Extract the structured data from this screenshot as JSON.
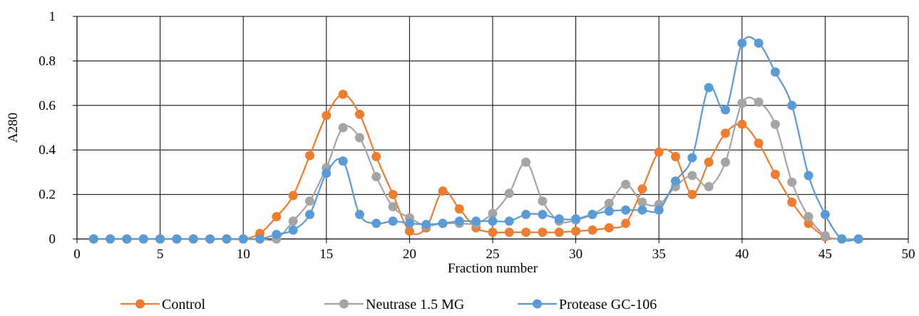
{
  "chart_data": {
    "type": "line",
    "title": "",
    "xlabel": "Fraction number",
    "ylabel": "A280",
    "xlim": [
      0,
      50
    ],
    "ylim": [
      0,
      1
    ],
    "xticks": [
      0,
      5,
      10,
      15,
      20,
      25,
      30,
      35,
      40,
      45,
      50
    ],
    "yticks": [
      0,
      0.2,
      0.4,
      0.6,
      0.8,
      1
    ],
    "xtick_labels": [
      "0",
      "5",
      "10",
      "15",
      "20",
      "25",
      "30",
      "35",
      "40",
      "45",
      "50"
    ],
    "ytick_labels": [
      "0",
      "0.2",
      "0.4",
      "0.6",
      "0.8",
      "1"
    ],
    "grid": true,
    "smooth": true,
    "legend_position": "bottom",
    "series": [
      {
        "name": "Control",
        "color": "#ED7D31",
        "x": [
          1,
          2,
          3,
          4,
          5,
          6,
          7,
          8,
          9,
          10,
          11,
          12,
          13,
          14,
          15,
          16,
          17,
          18,
          19,
          20,
          21,
          22,
          23,
          24,
          25,
          26,
          27,
          28,
          29,
          30,
          31,
          32,
          33,
          34,
          35,
          36,
          37,
          38,
          39,
          40,
          41,
          42,
          43,
          44,
          45,
          46,
          47
        ],
        "y": [
          0,
          0,
          0,
          0,
          0,
          0,
          0,
          0,
          0,
          0,
          0.025,
          0.1,
          0.195,
          0.375,
          0.555,
          0.65,
          0.56,
          0.37,
          0.2,
          0.035,
          0.05,
          0.215,
          0.135,
          0.05,
          0.03,
          0.03,
          0.03,
          0.03,
          0.03,
          0.035,
          0.04,
          0.05,
          0.07,
          0.225,
          0.39,
          0.37,
          0.2,
          0.345,
          0.475,
          0.515,
          0.43,
          0.29,
          0.165,
          0.07,
          0.01,
          0,
          0
        ]
      },
      {
        "name": "Neutrase 1.5 MG",
        "color": "#A5A5A5",
        "x": [
          1,
          2,
          3,
          4,
          5,
          6,
          7,
          8,
          9,
          10,
          11,
          12,
          13,
          14,
          15,
          16,
          17,
          18,
          19,
          20,
          21,
          22,
          23,
          24,
          25,
          26,
          27,
          28,
          29,
          30,
          31,
          32,
          33,
          34,
          35,
          36,
          37,
          38,
          39,
          40,
          41,
          42,
          43,
          44,
          45,
          46,
          47
        ],
        "y": [
          0,
          0,
          0,
          0,
          0,
          0,
          0,
          0,
          0,
          0,
          0,
          0,
          0.08,
          0.17,
          0.32,
          0.5,
          0.455,
          0.28,
          0.145,
          0.095,
          0.06,
          0.07,
          0.07,
          0.07,
          0.115,
          0.205,
          0.345,
          0.17,
          0.08,
          0.085,
          0.11,
          0.16,
          0.245,
          0.165,
          0.155,
          0.235,
          0.285,
          0.235,
          0.345,
          0.61,
          0.615,
          0.515,
          0.255,
          0.1,
          0.015,
          0,
          0
        ]
      },
      {
        "name": "Protease GC-106",
        "color": "#5B9BD5",
        "x": [
          1,
          2,
          3,
          4,
          5,
          6,
          7,
          8,
          9,
          10,
          11,
          12,
          13,
          14,
          15,
          16,
          17,
          18,
          19,
          20,
          21,
          22,
          23,
          24,
          25,
          26,
          27,
          28,
          29,
          30,
          31,
          32,
          33,
          34,
          35,
          36,
          37,
          38,
          39,
          40,
          41,
          42,
          43,
          44,
          45,
          46,
          47
        ],
        "y": [
          0,
          0,
          0,
          0,
          0,
          0,
          0,
          0,
          0,
          0,
          0,
          0.02,
          0.04,
          0.11,
          0.295,
          0.35,
          0.11,
          0.07,
          0.08,
          0.07,
          0.065,
          0.07,
          0.08,
          0.08,
          0.08,
          0.08,
          0.11,
          0.11,
          0.09,
          0.09,
          0.11,
          0.125,
          0.13,
          0.13,
          0.13,
          0.26,
          0.365,
          0.68,
          0.58,
          0.88,
          0.88,
          0.75,
          0.6,
          0.285,
          0.11,
          0,
          0
        ]
      }
    ]
  }
}
